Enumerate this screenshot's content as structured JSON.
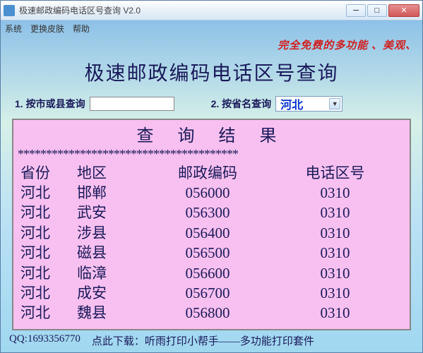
{
  "window": {
    "title": "极速邮政编码电话区号查询 V2.0"
  },
  "menu": {
    "system": "系统",
    "skin": "更换皮肤",
    "help": "帮助"
  },
  "banner": "完全免费的多功能 、美观、",
  "main_title": "极速邮政编码电话区号查询",
  "search": {
    "by_city_label": "1. 按市或县查询",
    "city_value": "",
    "by_province_label": "2. 按省名查询",
    "province_value": "河北"
  },
  "results": {
    "title": "查 询 结 果",
    "stars": "***************************************",
    "headers": {
      "province": "省份",
      "area": "地区",
      "zip": "邮政编码",
      "tel": "电话区号"
    },
    "rows": [
      {
        "province": "河北",
        "area": "邯郸",
        "zip": "056000",
        "tel": "0310"
      },
      {
        "province": "河北",
        "area": "武安",
        "zip": "056300",
        "tel": "0310"
      },
      {
        "province": "河北",
        "area": "涉县",
        "zip": "056400",
        "tel": "0310"
      },
      {
        "province": "河北",
        "area": "磁县",
        "zip": "056500",
        "tel": "0310"
      },
      {
        "province": "河北",
        "area": "临漳",
        "zip": "056600",
        "tel": "0310"
      },
      {
        "province": "河北",
        "area": "成安",
        "zip": "056700",
        "tel": "0310"
      },
      {
        "province": "河北",
        "area": "魏县",
        "zip": "056800",
        "tel": "0310"
      }
    ]
  },
  "footer": {
    "qq": "QQ:1693356770",
    "download_prefix": "点此下载：",
    "download_link": "听雨打印小帮手——多功能打印套件"
  }
}
